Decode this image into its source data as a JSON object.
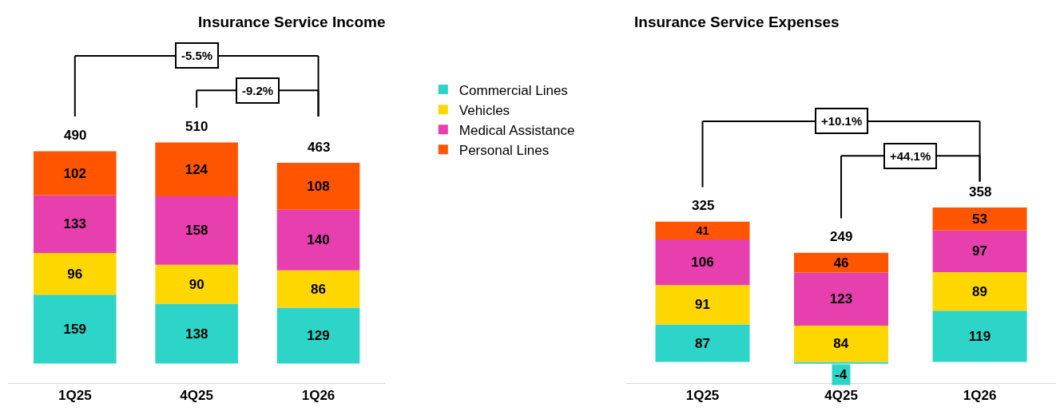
{
  "chart_data": [
    {
      "type": "bar",
      "title": "Insurance Service Income",
      "categories": [
        "1Q25",
        "4Q25",
        "1Q26"
      ],
      "stacked": true,
      "data_labels": true,
      "legend": "right",
      "totals": [
        "490",
        "510",
        "463"
      ],
      "series": [
        {
          "name": "Commercial Lines",
          "color": "#2dd4c8",
          "values": [
            159,
            138,
            129
          ]
        },
        {
          "name": "Vehicles",
          "color": "#ffd700",
          "values": [
            96,
            90,
            86
          ]
        },
        {
          "name": "Medical Assistance",
          "color": "#e83fae",
          "values": [
            133,
            158,
            140
          ]
        },
        {
          "name": "Personal Lines",
          "color": "#ff5500",
          "values": [
            102,
            124,
            108
          ]
        }
      ],
      "annotations": [
        "-5.5%",
        "-9.2%"
      ]
    },
    {
      "type": "bar",
      "title": "Insurance Service Expenses",
      "categories": [
        "1Q25",
        "4Q25",
        "1Q26"
      ],
      "stacked": true,
      "data_labels": true,
      "totals": [
        "325",
        "249",
        "358"
      ],
      "series": [
        {
          "color": "#2dd4c8",
          "values": [
            87,
            -4,
            119
          ]
        },
        {
          "color": "#ffd700",
          "values": [
            91,
            84,
            89
          ]
        },
        {
          "color": "#e83fae",
          "values": [
            106,
            123,
            97
          ]
        },
        {
          "color": "#ff5500",
          "values": [
            41,
            46,
            53
          ]
        }
      ],
      "annotations": [
        "+10.1%",
        "+44.1%"
      ]
    }
  ]
}
